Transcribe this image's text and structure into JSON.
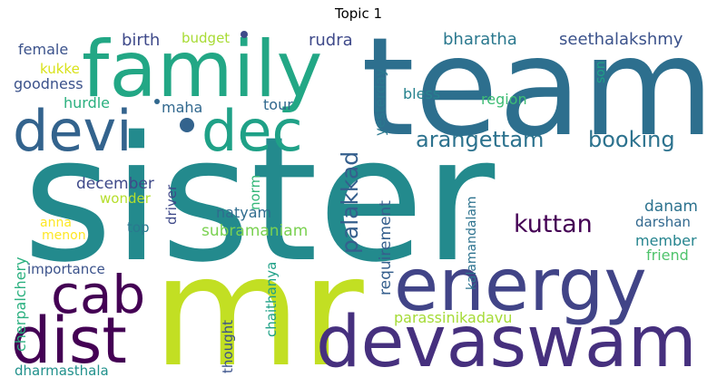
{
  "title": "Topic 1",
  "words": [
    {
      "text": "sister",
      "color": "#238a8d"
    },
    {
      "text": "mr",
      "color": "#c2df23"
    },
    {
      "text": "team",
      "color": "#2d6f8e"
    },
    {
      "text": "family",
      "color": "#22a785"
    },
    {
      "text": "energy",
      "color": "#414487"
    },
    {
      "text": "devaswam",
      "color": "#46307e"
    },
    {
      "text": "dist",
      "color": "#440154"
    },
    {
      "text": "devi",
      "color": "#33638d"
    },
    {
      "text": "dec",
      "color": "#1fa187"
    },
    {
      "text": "cab",
      "color": "#440154"
    },
    {
      "text": "arangettam",
      "color": "#2c728e"
    },
    {
      "text": "booking",
      "color": "#2c728e"
    },
    {
      "text": "kuttan",
      "color": "#440154"
    },
    {
      "text": "palakkad",
      "color": "#355f8d"
    },
    {
      "text": "birth",
      "color": "#3f4a8a"
    },
    {
      "text": "budget",
      "color": "#a8db34"
    },
    {
      "text": "rudra",
      "color": "#3f4a8a"
    },
    {
      "text": "bharatha",
      "color": "#2a788e"
    },
    {
      "text": "seethalakshmy",
      "color": "#3b528b"
    },
    {
      "text": "female",
      "color": "#3b528b"
    },
    {
      "text": "kukke",
      "color": "#d8e219"
    },
    {
      "text": "goodness",
      "color": "#3b528b"
    },
    {
      "text": "hurdle",
      "color": "#2ab07f"
    },
    {
      "text": "maha",
      "color": "#31688e"
    },
    {
      "text": "tour",
      "color": "#31688e"
    },
    {
      "text": "yesterday",
      "color": "#2a788e"
    },
    {
      "text": "bless",
      "color": "#26828e"
    },
    {
      "text": "region",
      "color": "#3dbc74"
    },
    {
      "text": "son",
      "color": "#1fa187"
    },
    {
      "text": "december",
      "color": "#3e4989"
    },
    {
      "text": "wonder",
      "color": "#b5de2b"
    },
    {
      "text": "norm",
      "color": "#35b779"
    },
    {
      "text": "driver",
      "color": "#3e4989"
    },
    {
      "text": "natyam",
      "color": "#2f6c8e"
    },
    {
      "text": "subramaniam",
      "color": "#7ad151"
    },
    {
      "text": "requirement",
      "color": "#355f8d"
    },
    {
      "text": "danam",
      "color": "#2c728e"
    },
    {
      "text": "darshan",
      "color": "#31688e"
    },
    {
      "text": "member",
      "color": "#25848e"
    },
    {
      "text": "friend",
      "color": "#4ec36b"
    },
    {
      "text": "kalamandalam",
      "color": "#2c728e"
    },
    {
      "text": "anna",
      "color": "#fde725"
    },
    {
      "text": "menon",
      "color": "#fde725"
    },
    {
      "text": "top",
      "color": "#2a788e"
    },
    {
      "text": "importance",
      "color": "#3b528b"
    },
    {
      "text": "cherpalchery",
      "color": "#2ab07f"
    },
    {
      "text": "chaithanya",
      "color": "#1fa187"
    },
    {
      "text": "parassinikadavu",
      "color": "#a5db36"
    },
    {
      "text": "thought",
      "color": "#3b528b"
    },
    {
      "text": "dharmasthala",
      "color": "#21918c"
    }
  ]
}
